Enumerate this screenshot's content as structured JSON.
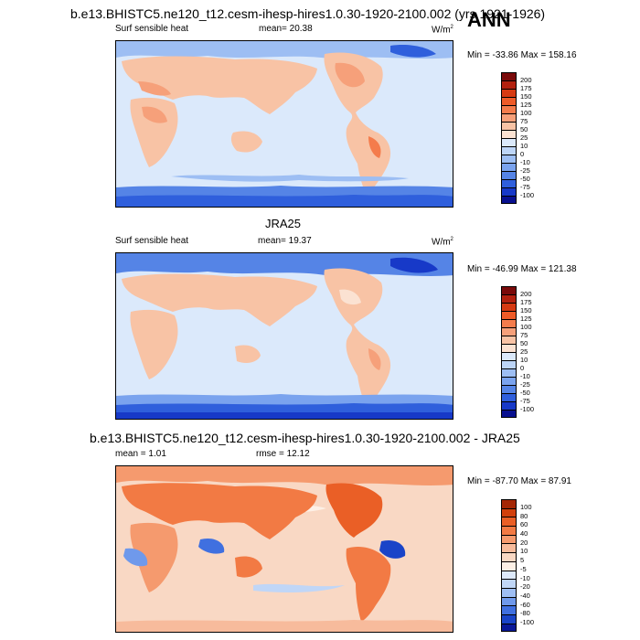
{
  "figure": {
    "title": "b.e13.BHISTC5.ne120_t12.cesm-ihesp-hires1.0.30-1920-2100.002 (yrs 1921-1926)",
    "season": "ANN"
  },
  "chart_data": [
    {
      "type": "heatmap",
      "title": "b.e13.BHISTC5.ne120_t12.cesm-ihesp-hires1.0.30-1920-2100.002 (yrs 1921-1926)",
      "left_label": "Surf sensible heat",
      "center_label": "mean=  20.38",
      "units": "W/m",
      "units_sup": "2",
      "minmax": "Min = -33.86 Max = 158.16",
      "colorbar_levels": [
        "200",
        "175",
        "150",
        "125",
        "100",
        "75",
        "50",
        "25",
        "10",
        "0",
        "-10",
        "-25",
        "-50",
        "-75",
        "-100"
      ],
      "colorbar_colors": [
        "#7a0a0a",
        "#b3210f",
        "#d63a12",
        "#ee5b28",
        "#f47c4c",
        "#f6a07a",
        "#f8c3a5",
        "#fbe2d2",
        "#dbe9fb",
        "#bdd5f7",
        "#9dbef3",
        "#7aa3ee",
        "#5584e6",
        "#2f5fdc",
        "#1739c8",
        "#08108f"
      ]
    },
    {
      "type": "heatmap",
      "title": "JRA25",
      "left_label": "Surf sensible heat",
      "center_label": "mean=  19.37",
      "units": "W/m",
      "units_sup": "2",
      "minmax": "Min = -46.99 Max = 121.38",
      "colorbar_levels": [
        "200",
        "175",
        "150",
        "125",
        "100",
        "75",
        "50",
        "25",
        "10",
        "0",
        "-10",
        "-25",
        "-50",
        "-75",
        "-100"
      ],
      "colorbar_colors": [
        "#7a0a0a",
        "#b3210f",
        "#d63a12",
        "#ee5b28",
        "#f47c4c",
        "#f6a07a",
        "#f8c3a5",
        "#fbe2d2",
        "#dbe9fb",
        "#bdd5f7",
        "#9dbef3",
        "#7aa3ee",
        "#5584e6",
        "#2f5fdc",
        "#1739c8",
        "#08108f"
      ]
    },
    {
      "type": "heatmap",
      "title": "b.e13.BHISTC5.ne120_t12.cesm-ihesp-hires1.0.30-1920-2100.002 - JRA25",
      "left_label": "mean =  1.01",
      "center_label": "rmse =  12.12",
      "units": "",
      "units_sup": "",
      "minmax": "Min = -87.70 Max =  87.91",
      "colorbar_levels": [
        "100",
        "80",
        "60",
        "40",
        "20",
        "10",
        "5",
        "-5",
        "-10",
        "-20",
        "-40",
        "-60",
        "-80",
        "-100"
      ],
      "colorbar_colors": [
        "#a42605",
        "#d2400c",
        "#ea5f26",
        "#f27a44",
        "#f59a6e",
        "#f7bb9c",
        "#f9d8c4",
        "#fdf0e6",
        "#dde9fb",
        "#c0d6f7",
        "#9ebef3",
        "#6f99eb",
        "#4070e0",
        "#1a44c8",
        "#0a1898"
      ]
    }
  ]
}
